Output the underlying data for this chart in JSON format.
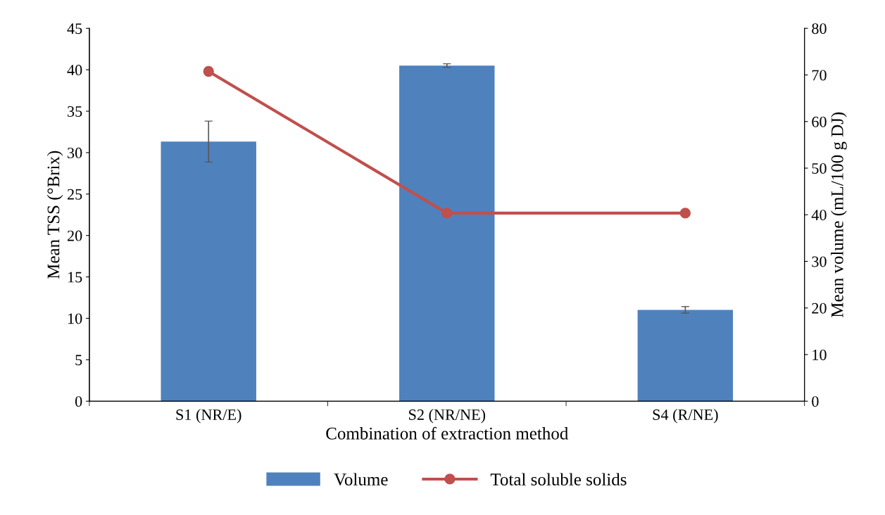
{
  "chart_data": {
    "type": "bar",
    "xlabel": "Combination of extraction method",
    "ylabel": "Mean TSS (°Brix)",
    "y2label": "Mean volume (mL/100 g DJ)",
    "categories": [
      "S1 (NR/E)",
      "S2 (NR/NE)",
      "S4 (R/NE)"
    ],
    "series": [
      {
        "name": "Volume",
        "axis": "y2",
        "color": "#4f81bd",
        "values": [
          55.7,
          72.0,
          19.6
        ],
        "errors": [
          4.4,
          0.4,
          0.7
        ]
      },
      {
        "name": "Total soluble solids",
        "type": "line",
        "axis": "y",
        "color": "#c0504d",
        "values": [
          39.8,
          22.7,
          22.7
        ],
        "marker": "circle"
      }
    ],
    "ylim": [
      0,
      45
    ],
    "yticks": [
      0,
      5,
      10,
      15,
      20,
      25,
      30,
      35,
      40,
      45
    ],
    "y2lim": [
      0,
      80
    ],
    "y2ticks": [
      0,
      10,
      20,
      30,
      40,
      50,
      60,
      70,
      80
    ],
    "grid": false,
    "legend": "bottom"
  }
}
